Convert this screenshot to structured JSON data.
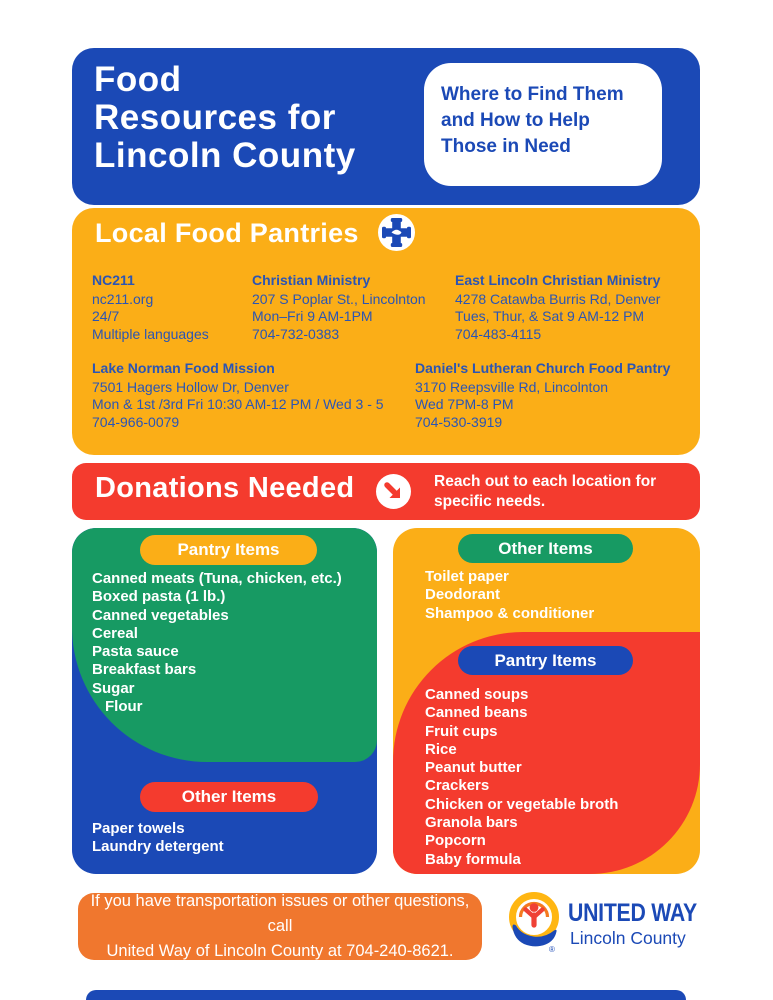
{
  "colors": {
    "blue": "#1B49B6",
    "yellow": "#FBAE17",
    "green": "#179A63",
    "red": "#F43B2E",
    "orange": "#F0772E",
    "text_blue_on_yellow": "#2B55B4",
    "logo_gold": "#FFB612",
    "logo_orange": "#F47A20",
    "logo_red": "#EF4136"
  },
  "header": {
    "title_lines": [
      "Food",
      "Resources for",
      "Lincoln County"
    ],
    "callout": "Where to Find Them and How to Help Those in Need"
  },
  "pantries": {
    "title": "Local Food Pantries",
    "icon": "helping-hands-cross-icon",
    "row1": [
      {
        "name": "NC211",
        "lines": [
          "nc211.org",
          "24/7",
          "Multiple languages"
        ]
      },
      {
        "name": "Christian Ministry",
        "lines": [
          "207 S Poplar St., Lincolnton",
          "Mon–Fri 9 AM-1PM",
          "704-732-0383"
        ]
      },
      {
        "name": "East Lincoln Christian Ministry",
        "lines": [
          "4278 Catawba Burris Rd, Denver",
          "Tues, Thur, & Sat 9 AM-12 PM",
          "704-483-4115"
        ]
      }
    ],
    "row2": [
      {
        "name": "Lake Norman Food Mission",
        "lines": [
          "7501 Hagers Hollow Dr, Denver",
          "Mon & 1st /3rd Fri 10:30 AM-12 PM / Wed 3 - 5",
          "704-966-0079"
        ]
      },
      {
        "name": "Daniel's Lutheran Church Food Pantry",
        "lines": [
          "3170 Reepsville Rd, Lincolnton",
          "Wed 7PM-8 PM",
          "704-530-3919"
        ]
      }
    ]
  },
  "donations": {
    "title": "Donations Needed",
    "icon": "arrow-down-right-icon",
    "note": "Reach out to each location for specific needs."
  },
  "columns": {
    "left": {
      "pantry_pill": "Pantry Items",
      "pantry_items": [
        "Canned meats (Tuna, chicken, etc.)",
        "Boxed pasta (1 lb.)",
        "Canned vegetables",
        "Cereal",
        "Pasta sauce",
        "Breakfast bars",
        "Sugar",
        "Flour"
      ],
      "other_pill": "Other Items",
      "other_items": [
        "Paper towels",
        "Laundry detergent"
      ]
    },
    "right": {
      "other_pill": "Other Items",
      "other_items": [
        "Toilet paper",
        "Deodorant",
        "Shampoo & conditioner"
      ],
      "pantry_pill": "Pantry Items",
      "pantry_items": [
        "Canned soups",
        "Canned beans",
        "Fruit cups",
        "Rice",
        "Peanut butter",
        "Crackers",
        "Chicken or vegetable broth",
        "Granola bars",
        "Popcorn",
        "Baby formula"
      ]
    }
  },
  "footer": {
    "lines": [
      "If you have transportation issues or other questions, call",
      "United Way of Lincoln County at 704-240-8621."
    ],
    "logo": {
      "title": "UNITED WAY",
      "subtitle": "Lincoln County",
      "registered": "®"
    }
  }
}
